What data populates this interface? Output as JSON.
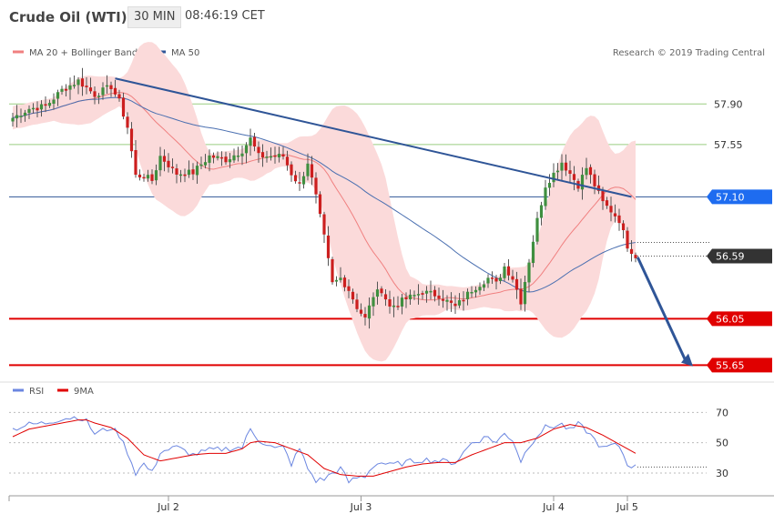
{
  "header": {
    "title": "Crude Oil (WTI)",
    "interval": "30 MIN",
    "time": "08:46:19 CET"
  },
  "chart_data": [
    {
      "type": "candlestick",
      "legend": [
        {
          "label": "MA 20 + Bollinger Bands",
          "color": "#f08080"
        },
        {
          "label": "MA 50",
          "color": "#2f5597"
        }
      ],
      "credit": "Research © 2019 Trading Central",
      "x_labels": [
        {
          "label": "Jul 2",
          "index": 38
        },
        {
          "label": "Jul 3",
          "index": 85
        },
        {
          "label": "Jul 4",
          "index": 132
        },
        {
          "label": "Jul 5",
          "index": 150
        }
      ],
      "ylim": [
        55.52,
        58.38
      ],
      "candle_count": 153,
      "close_path": [
        [
          0,
          57.78
        ],
        [
          4,
          57.86
        ],
        [
          8,
          57.88
        ],
        [
          12,
          58.02
        ],
        [
          16,
          58.1
        ],
        [
          20,
          57.98
        ],
        [
          24,
          58.05
        ],
        [
          26,
          57.92
        ],
        [
          28,
          57.7
        ],
        [
          30,
          57.28
        ],
        [
          32,
          57.28
        ],
        [
          34,
          57.24
        ],
        [
          36,
          57.45
        ],
        [
          40,
          57.3
        ],
        [
          44,
          57.31
        ],
        [
          48,
          57.45
        ],
        [
          52,
          57.42
        ],
        [
          56,
          57.5
        ],
        [
          58,
          57.6
        ],
        [
          60,
          57.45
        ],
        [
          64,
          57.45
        ],
        [
          66,
          57.45
        ],
        [
          68,
          57.3
        ],
        [
          70,
          57.2
        ],
        [
          72,
          57.4
        ],
        [
          74,
          57.1
        ],
        [
          76,
          56.75
        ],
        [
          78,
          56.35
        ],
        [
          80,
          56.4
        ],
        [
          82,
          56.3
        ],
        [
          84,
          56.15
        ],
        [
          86,
          56.05
        ],
        [
          88,
          56.25
        ],
        [
          90,
          56.3
        ],
        [
          92,
          56.15
        ],
        [
          96,
          56.22
        ],
        [
          100,
          56.28
        ],
        [
          104,
          56.25
        ],
        [
          108,
          56.15
        ],
        [
          112,
          56.3
        ],
        [
          116,
          56.4
        ],
        [
          118,
          56.35
        ],
        [
          120,
          56.5
        ],
        [
          122,
          56.4
        ],
        [
          124,
          56.2
        ],
        [
          126,
          56.55
        ],
        [
          128,
          56.9
        ],
        [
          130,
          57.2
        ],
        [
          134,
          57.4
        ],
        [
          138,
          57.2
        ],
        [
          140,
          57.35
        ],
        [
          142,
          57.2
        ],
        [
          144,
          57.05
        ],
        [
          146,
          56.98
        ],
        [
          148,
          56.9
        ],
        [
          150,
          56.68
        ],
        [
          152,
          56.59
        ]
      ],
      "trendline": {
        "from": {
          "index": 25,
          "value": 58.12
        },
        "to": {
          "index": 151,
          "value": 57.1
        }
      },
      "levels": [
        {
          "value": 57.9,
          "label": "57.90",
          "style": "resistance"
        },
        {
          "value": 57.55,
          "label": "57.55",
          "style": "resistance"
        },
        {
          "value": 57.1,
          "label": "57.10",
          "style": "pivot"
        },
        {
          "value": 56.59,
          "label": "56.59",
          "style": "last"
        },
        {
          "value": 56.05,
          "label": "56.05",
          "style": "support"
        },
        {
          "value": 55.65,
          "label": "55.65",
          "style": "support"
        }
      ],
      "forecast_arrow": {
        "from": {
          "index": 152.5,
          "value": 56.58
        },
        "to": {
          "index": 166,
          "value": 55.64
        }
      },
      "colors": {
        "up": "#3f8f3f",
        "down": "#cc1f1f",
        "ma20": "#f08080",
        "bands_fill": "#fbdada",
        "ma50": "#4a6fb0",
        "trend": "#2f5597",
        "support": "#e00000",
        "pivot": "#2f5597",
        "resistance": "#9acd80",
        "pivot_tag": "#1e6cf0",
        "last_tag": "#333333"
      }
    },
    {
      "type": "line",
      "legend": [
        {
          "label": "RSI",
          "color": "#6b86e0"
        },
        {
          "label": "9MA",
          "color": "#e00000"
        }
      ],
      "yticks": [
        70,
        50,
        30
      ],
      "ylim": [
        18,
        78
      ],
      "rsi_path": [
        [
          0,
          59
        ],
        [
          4,
          62
        ],
        [
          8,
          63
        ],
        [
          12,
          66
        ],
        [
          16,
          67
        ],
        [
          18,
          64
        ],
        [
          20,
          56
        ],
        [
          24,
          60
        ],
        [
          26,
          55
        ],
        [
          28,
          44
        ],
        [
          30,
          30
        ],
        [
          32,
          36
        ],
        [
          34,
          30
        ],
        [
          36,
          44
        ],
        [
          40,
          47
        ],
        [
          44,
          42
        ],
        [
          48,
          45
        ],
        [
          52,
          46
        ],
        [
          56,
          47
        ],
        [
          58,
          59
        ],
        [
          60,
          52
        ],
        [
          64,
          46
        ],
        [
          66,
          47
        ],
        [
          68,
          36
        ],
        [
          70,
          46
        ],
        [
          72,
          33
        ],
        [
          74,
          25
        ],
        [
          76,
          26
        ],
        [
          78,
          30
        ],
        [
          80,
          33
        ],
        [
          82,
          24
        ],
        [
          84,
          27
        ],
        [
          86,
          28
        ],
        [
          88,
          35
        ],
        [
          90,
          37
        ],
        [
          92,
          35
        ],
        [
          96,
          37
        ],
        [
          100,
          39
        ],
        [
          104,
          38
        ],
        [
          108,
          37
        ],
        [
          112,
          50
        ],
        [
          116,
          54
        ],
        [
          118,
          50
        ],
        [
          120,
          56
        ],
        [
          122,
          52
        ],
        [
          124,
          38
        ],
        [
          126,
          48
        ],
        [
          128,
          55
        ],
        [
          130,
          60
        ],
        [
          134,
          62
        ],
        [
          136,
          58
        ],
        [
          138,
          62
        ],
        [
          140,
          58
        ],
        [
          142,
          52
        ],
        [
          144,
          46
        ],
        [
          146,
          48
        ],
        [
          148,
          48
        ],
        [
          150,
          36
        ],
        [
          152,
          34
        ]
      ],
      "ma9_path": [
        [
          0,
          54
        ],
        [
          4,
          59
        ],
        [
          8,
          61
        ],
        [
          12,
          63
        ],
        [
          16,
          65
        ],
        [
          18,
          65
        ],
        [
          20,
          63
        ],
        [
          24,
          60
        ],
        [
          28,
          53
        ],
        [
          32,
          42
        ],
        [
          36,
          38
        ],
        [
          40,
          40
        ],
        [
          44,
          42
        ],
        [
          48,
          43
        ],
        [
          52,
          43
        ],
        [
          56,
          46
        ],
        [
          58,
          50
        ],
        [
          60,
          51
        ],
        [
          64,
          50
        ],
        [
          68,
          46
        ],
        [
          72,
          42
        ],
        [
          76,
          33
        ],
        [
          80,
          29
        ],
        [
          84,
          28
        ],
        [
          88,
          28
        ],
        [
          92,
          31
        ],
        [
          96,
          34
        ],
        [
          100,
          36
        ],
        [
          104,
          37
        ],
        [
          108,
          37
        ],
        [
          112,
          42
        ],
        [
          116,
          46
        ],
        [
          120,
          50
        ],
        [
          124,
          50
        ],
        [
          128,
          53
        ],
        [
          132,
          59
        ],
        [
          136,
          62
        ],
        [
          140,
          60
        ],
        [
          144,
          55
        ],
        [
          148,
          49
        ],
        [
          152,
          43
        ]
      ]
    }
  ]
}
